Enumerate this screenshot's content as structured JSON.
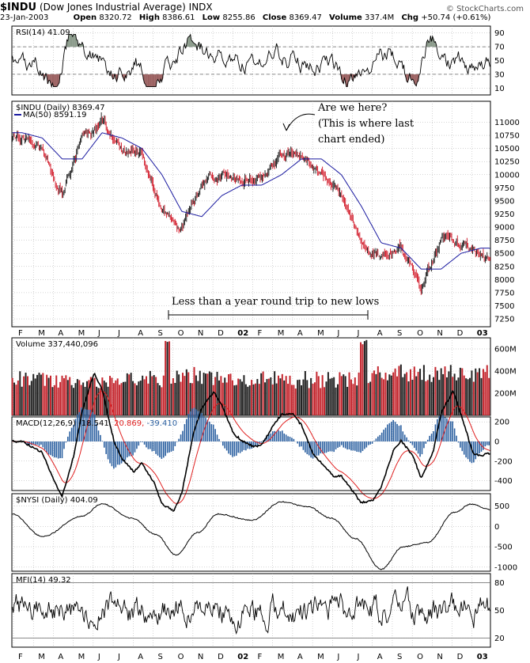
{
  "header": {
    "symbol": "$INDU",
    "name": "(Dow Jones Industrial Average)",
    "exchange": "INDX",
    "date": "23-Jan-2003",
    "open_label": "Open",
    "open": "8320.72",
    "high_label": "High",
    "high": "8386.61",
    "low_label": "Low",
    "low": "8255.86",
    "close_label": "Close",
    "close": "8369.47",
    "volume_label": "Volume",
    "volume": "337.4M",
    "chg_label": "Chg",
    "chg": "+50.74 (+0.61%)",
    "brand": "© StockCharts.com"
  },
  "chart_data": [
    {
      "panel": "rsi",
      "type": "line",
      "title": "RSI(14) 41.09",
      "ylim": [
        0,
        100
      ],
      "yticks": [
        10,
        30,
        50,
        70,
        90
      ],
      "ref_lines": [
        30,
        70
      ],
      "last": 41.09
    },
    {
      "panel": "price",
      "type": "candlestick",
      "title": "$INDU (Daily) 8369.47",
      "ma_label": "MA(50) 8591.19",
      "ylim": [
        7100,
        11400
      ],
      "yticks": [
        7250,
        7500,
        7750,
        8000,
        8250,
        8500,
        8750,
        9000,
        9250,
        9500,
        9750,
        10000,
        10250,
        10500,
        10750,
        11000
      ],
      "x": [
        "2001-02",
        "2001-03",
        "2001-04",
        "2001-05",
        "2001-06",
        "2001-07",
        "2001-08",
        "2001-09",
        "2001-10",
        "2001-11",
        "2001-12",
        "2002-01",
        "2002-02",
        "2002-03",
        "2002-04",
        "2002-05",
        "2002-06",
        "2002-07",
        "2002-08",
        "2002-09",
        "2002-10",
        "2002-11",
        "2002-12",
        "2003-01"
      ],
      "close_monthly": [
        10700,
        10500,
        9600,
        10700,
        11000,
        10500,
        10400,
        9300,
        9000,
        9800,
        10000,
        9900,
        9900,
        10400,
        10400,
        10000,
        9600,
        8700,
        8400,
        8600,
        7800,
        8800,
        8700,
        8500
      ],
      "ma50_monthly": [
        10800,
        10700,
        10300,
        10300,
        10800,
        10700,
        10500,
        10000,
        9300,
        9200,
        9600,
        9800,
        9800,
        10000,
        10300,
        10300,
        10000,
        9400,
        8700,
        8600,
        8200,
        8200,
        8500,
        8600
      ],
      "last": 8369.47,
      "ma_last": 8591.19
    },
    {
      "panel": "volume",
      "type": "bar",
      "title": "Volume 337,440,096",
      "ylim": [
        0,
        700
      ],
      "yticks": [
        200,
        400,
        600
      ],
      "ytick_labels": [
        "200M",
        "400M",
        "600M"
      ],
      "last_millions": 337.4
    },
    {
      "panel": "macd",
      "type": "line",
      "title": "MACD(12,26,9)",
      "macd": "-18.541",
      "signal": "20.869",
      "hist": "-39.410",
      "ylim": [
        -500,
        250
      ],
      "yticks": [
        -400,
        -200,
        0,
        200
      ]
    },
    {
      "panel": "nysi",
      "type": "line",
      "title": "$NYSI (Daily) 404.09",
      "ylim": [
        -1100,
        800
      ],
      "yticks": [
        -1000,
        -500,
        0,
        500
      ],
      "last": 404.09
    },
    {
      "panel": "mfi",
      "type": "line",
      "title": "MFI(14) 49.32",
      "ylim": [
        10,
        90
      ],
      "yticks": [
        20,
        50,
        80
      ],
      "ref_lines": [
        20,
        80
      ],
      "last": 49.32
    }
  ],
  "x_axis": {
    "labels": [
      "F",
      "M",
      "A",
      "M",
      "J",
      "J",
      "A",
      "S",
      "O",
      "N",
      "D",
      "02",
      "F",
      "M",
      "A",
      "M",
      "J",
      "J",
      "A",
      "S",
      "O",
      "N",
      "D",
      "03"
    ]
  },
  "annotations": {
    "arrow_lines": [
      "Are we here?",
      "(This is where last",
      "chart ended)"
    ],
    "range_text": "Less than a year round trip to new lows"
  },
  "colors": {
    "ma": "#1a1aa0",
    "macd_signal": "#e02020",
    "hist": "#2a5fa0",
    "vol_up": "#222222",
    "vol_down": "#c4262e",
    "candle_down": "#d01020",
    "candle_up": "#111111",
    "rsi_fill": "#9a6060",
    "grid": "#aaaaaa"
  }
}
